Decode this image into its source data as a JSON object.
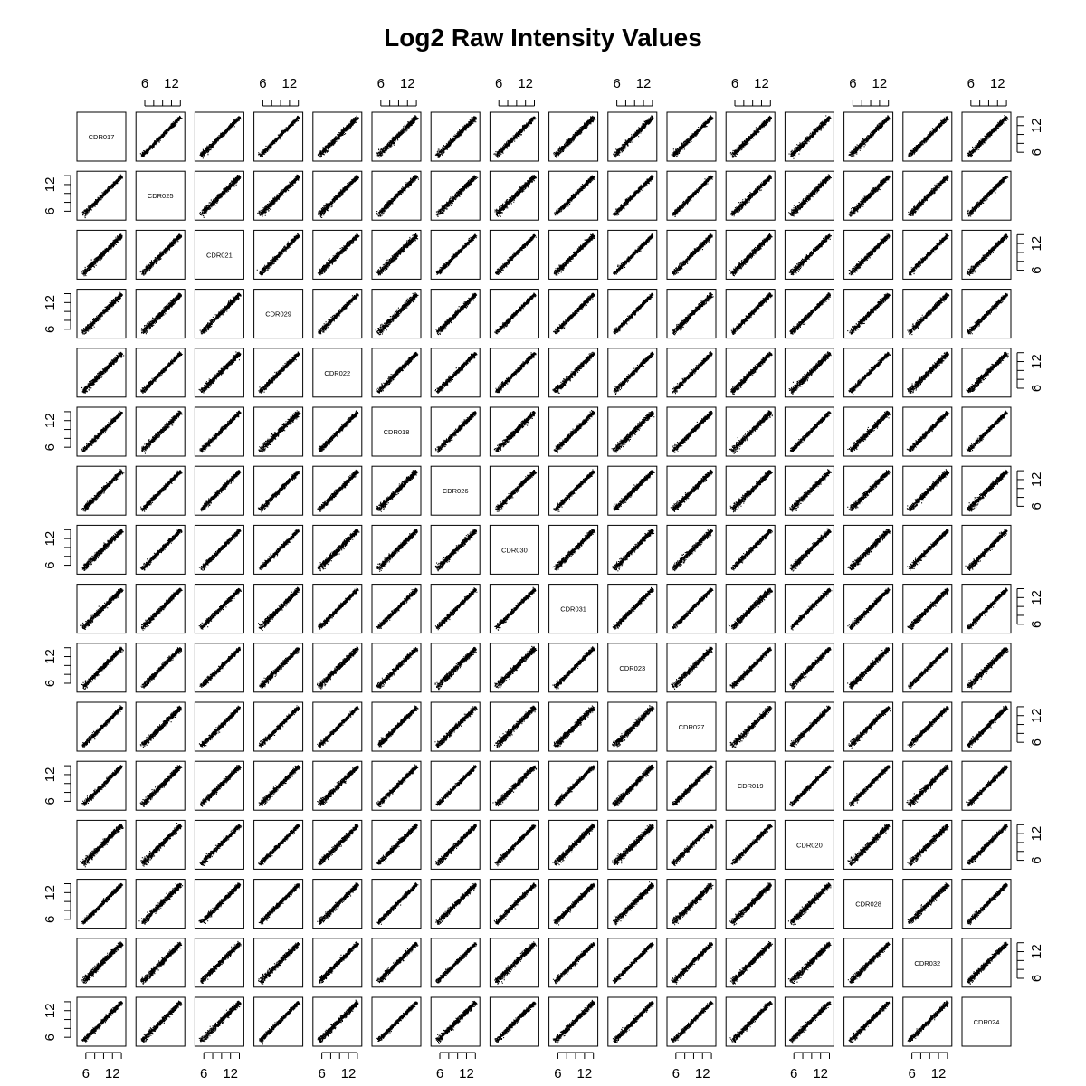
{
  "chart_data": {
    "type": "scatter",
    "subtype": "scatterplot-matrix",
    "title": "Log2 Raw Intensity Values",
    "variables": [
      "CDR017",
      "CDR025",
      "CDR021",
      "CDR029",
      "CDR022",
      "CDR018",
      "CDR026",
      "CDR030",
      "CDR031",
      "CDR023",
      "CDR027",
      "CDR019",
      "CDR020",
      "CDR028",
      "CDR032",
      "CDR024"
    ],
    "axis_range": [
      4,
      15
    ],
    "axis_ticks": [
      6,
      12
    ],
    "axis_tick_labels": [
      "6",
      "12"
    ],
    "minor_ticks": [
      6,
      8,
      10,
      12,
      14
    ],
    "axis_placement": "alternating top/bottom and left/right",
    "grid": false,
    "legend": "none",
    "point_color": "#000000",
    "points_per_panel_estimate": 800,
    "relationship": "strong positive linear (y ≈ x)"
  }
}
